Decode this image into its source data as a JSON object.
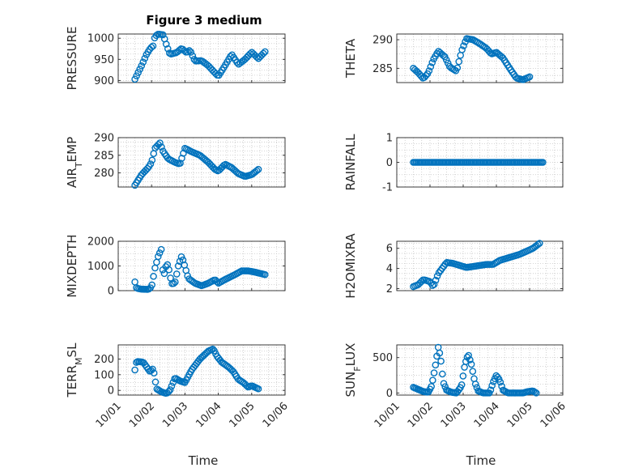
{
  "figure": {
    "title": "Figure 3 medium",
    "xlabel": "Time",
    "colors": {
      "marker": "#0072BD",
      "axis": "#262626",
      "grid": "#c8c8c8"
    },
    "xticks": [
      "10/01",
      "10/02",
      "10/03",
      "10/04",
      "10/05",
      "10/06"
    ]
  },
  "chart_data": [
    {
      "type": "scatter",
      "title": "Figure 3 medium",
      "ylabel": "PRESSURE",
      "ylabel_parts": [
        {
          "t": "PRESSURE"
        }
      ],
      "xlim": [
        0,
        5
      ],
      "ylim": [
        895,
        1010
      ],
      "yticks": [
        900,
        950,
        1000
      ],
      "xticks_visible": false,
      "knots": [
        [
          0.5,
          903
        ],
        [
          0.7,
          935
        ],
        [
          0.85,
          962
        ],
        [
          0.97,
          977
        ],
        [
          1.05,
          982
        ],
        [
          1.1,
          1004
        ],
        [
          1.2,
          1010
        ],
        [
          1.35,
          1008
        ],
        [
          1.45,
          983
        ],
        [
          1.55,
          962
        ],
        [
          1.75,
          966
        ],
        [
          1.9,
          976
        ],
        [
          2.05,
          966
        ],
        [
          2.15,
          972
        ],
        [
          2.3,
          946
        ],
        [
          2.5,
          947
        ],
        [
          2.7,
          935
        ],
        [
          2.9,
          918
        ],
        [
          3.0,
          910
        ],
        [
          3.2,
          935
        ],
        [
          3.4,
          962
        ],
        [
          3.6,
          938
        ],
        [
          3.8,
          950
        ],
        [
          4.0,
          967
        ],
        [
          4.2,
          952
        ],
        [
          4.4,
          968
        ]
      ],
      "points": 80,
      "ybreak": []
    },
    {
      "type": "scatter",
      "title": "",
      "ylabel": "THETA",
      "ylabel_parts": [
        {
          "t": "THETA"
        }
      ],
      "xlim": [
        0,
        5
      ],
      "ylim": [
        282.5,
        291
      ],
      "yticks": [
        285,
        290
      ],
      "xticks_visible": false,
      "knots": [
        [
          0.5,
          285
        ],
        [
          0.65,
          284.2
        ],
        [
          0.8,
          283.2
        ],
        [
          0.95,
          284.2
        ],
        [
          1.1,
          286.5
        ],
        [
          1.25,
          288
        ],
        [
          1.45,
          287
        ],
        [
          1.6,
          285.2
        ],
        [
          1.8,
          284.5
        ],
        [
          1.95,
          288
        ],
        [
          2.1,
          290.2
        ],
        [
          2.3,
          290
        ],
        [
          2.5,
          289.3
        ],
        [
          2.7,
          288.5
        ],
        [
          2.85,
          287.5
        ],
        [
          3.0,
          287.8
        ],
        [
          3.2,
          286.8
        ],
        [
          3.4,
          285
        ],
        [
          3.6,
          283.3
        ],
        [
          3.8,
          283
        ],
        [
          4.0,
          283.5
        ]
      ],
      "points": 75,
      "ybreak": []
    },
    {
      "type": "scatter",
      "title": "",
      "ylabel": "AIR_TEMP",
      "ylabel_parts": [
        {
          "t": "AIR"
        },
        {
          "t": "T",
          "sub": true
        },
        {
          "t": "EMP"
        }
      ],
      "xlim": [
        0,
        5
      ],
      "ylim": [
        276,
        290
      ],
      "yticks": [
        280,
        285,
        290
      ],
      "xticks_visible": false,
      "knots": [
        [
          0.5,
          276.5
        ],
        [
          0.7,
          279.5
        ],
        [
          0.9,
          281.5
        ],
        [
          1.0,
          283
        ],
        [
          1.1,
          287
        ],
        [
          1.25,
          288.5
        ],
        [
          1.35,
          286
        ],
        [
          1.5,
          284
        ],
        [
          1.7,
          283
        ],
        [
          1.85,
          282.5
        ],
        [
          2.0,
          287
        ],
        [
          2.2,
          286
        ],
        [
          2.45,
          285
        ],
        [
          2.7,
          283
        ],
        [
          2.9,
          281
        ],
        [
          3.0,
          280.5
        ],
        [
          3.2,
          282.5
        ],
        [
          3.4,
          281.5
        ],
        [
          3.6,
          279.8
        ],
        [
          3.8,
          279
        ],
        [
          4.0,
          279.5
        ],
        [
          4.2,
          281
        ]
      ],
      "points": 80,
      "ybreak": []
    },
    {
      "type": "scatter",
      "title": "",
      "ylabel": "RAINFALL",
      "ylabel_parts": [
        {
          "t": "RAINFALL"
        }
      ],
      "xlim": [
        0,
        5
      ],
      "ylim": [
        -1,
        1
      ],
      "yticks": [
        -1,
        0,
        1
      ],
      "xticks_visible": false,
      "knots": [
        [
          0.5,
          0
        ],
        [
          4.4,
          0
        ]
      ],
      "points": 95,
      "ybreak": []
    },
    {
      "type": "scatter",
      "title": "",
      "ylabel": "MIXDEPTH",
      "ylabel_parts": [
        {
          "t": "MIXDEPTH"
        }
      ],
      "xlim": [
        0,
        5
      ],
      "ylim": [
        0,
        2000
      ],
      "yticks": [
        0,
        1000,
        2000
      ],
      "xticks_visible": false,
      "knots": [
        [
          0.5,
          350
        ],
        [
          0.55,
          100
        ],
        [
          0.7,
          60
        ],
        [
          0.9,
          50
        ],
        [
          1.0,
          150
        ],
        [
          1.1,
          900
        ],
        [
          1.2,
          1400
        ],
        [
          1.3,
          1700
        ],
        [
          1.35,
          500
        ],
        [
          1.45,
          1100
        ],
        [
          1.5,
          1000
        ],
        [
          1.6,
          280
        ],
        [
          1.7,
          300
        ],
        [
          1.8,
          1000
        ],
        [
          1.9,
          1400
        ],
        [
          1.95,
          1200
        ],
        [
          2.1,
          500
        ],
        [
          2.3,
          300
        ],
        [
          2.5,
          200
        ],
        [
          2.7,
          300
        ],
        [
          2.9,
          450
        ],
        [
          3.0,
          300
        ],
        [
          3.2,
          450
        ],
        [
          3.5,
          650
        ],
        [
          3.7,
          800
        ],
        [
          3.9,
          800
        ],
        [
          4.1,
          750
        ],
        [
          4.4,
          650
        ]
      ],
      "points": 85,
      "ybreak": []
    },
    {
      "type": "scatter",
      "title": "",
      "ylabel": "H2OMIXRA",
      "ylabel_parts": [
        {
          "t": "H2OMIXRA"
        }
      ],
      "xlim": [
        0,
        5
      ],
      "ylim": [
        1.8,
        6.7
      ],
      "yticks": [
        2,
        4,
        6
      ],
      "xticks_visible": false,
      "knots": [
        [
          0.5,
          2.2
        ],
        [
          0.65,
          2.4
        ],
        [
          0.8,
          2.9
        ],
        [
          1.0,
          2.7
        ],
        [
          1.1,
          2.2
        ],
        [
          1.25,
          3.5
        ],
        [
          1.5,
          4.6
        ],
        [
          1.7,
          4.5
        ],
        [
          1.9,
          4.3
        ],
        [
          2.1,
          4.1
        ],
        [
          2.3,
          4.2
        ],
        [
          2.5,
          4.3
        ],
        [
          2.7,
          4.4
        ],
        [
          2.9,
          4.4
        ],
        [
          3.1,
          4.8
        ],
        [
          3.3,
          5.0
        ],
        [
          3.5,
          5.2
        ],
        [
          3.7,
          5.4
        ],
        [
          3.9,
          5.7
        ],
        [
          4.1,
          6.0
        ],
        [
          4.3,
          6.5
        ]
      ],
      "points": 80,
      "ybreak": []
    },
    {
      "type": "scatter",
      "title": "",
      "ylabel": "TERR_MSL",
      "ylabel_parts": [
        {
          "t": "TERR"
        },
        {
          "t": "M",
          "sub": true
        },
        {
          "t": "SL"
        }
      ],
      "xlim": [
        0,
        5
      ],
      "ylim": [
        -30,
        290
      ],
      "yticks": [
        0,
        100,
        200
      ],
      "xticks_visible": true,
      "knots": [
        [
          0.5,
          130
        ],
        [
          0.55,
          185
        ],
        [
          0.75,
          180
        ],
        [
          0.95,
          120
        ],
        [
          1.05,
          140
        ],
        [
          1.15,
          10
        ],
        [
          1.3,
          -10
        ],
        [
          1.45,
          -20
        ],
        [
          1.55,
          0
        ],
        [
          1.7,
          80
        ],
        [
          1.85,
          60
        ],
        [
          2.0,
          50
        ],
        [
          2.2,
          130
        ],
        [
          2.45,
          200
        ],
        [
          2.7,
          250
        ],
        [
          2.85,
          265
        ],
        [
          2.95,
          220
        ],
        [
          3.1,
          180
        ],
        [
          3.3,
          150
        ],
        [
          3.45,
          120
        ],
        [
          3.6,
          70
        ],
        [
          3.75,
          50
        ],
        [
          3.9,
          20
        ],
        [
          4.0,
          30
        ],
        [
          4.2,
          10
        ]
      ],
      "points": 85,
      "ybreak": []
    },
    {
      "type": "scatter",
      "title": "",
      "ylabel": "SUN_FLUX",
      "ylabel_parts": [
        {
          "t": "SUN"
        },
        {
          "t": "F",
          "sub": true
        },
        {
          "t": "LUX"
        }
      ],
      "xlim": [
        0,
        5
      ],
      "ylim": [
        -30,
        680
      ],
      "yticks": [
        0,
        500
      ],
      "xticks_visible": true,
      "knots": [
        [
          0.5,
          80
        ],
        [
          0.6,
          60
        ],
        [
          0.8,
          20
        ],
        [
          0.95,
          10
        ],
        [
          1.05,
          100
        ],
        [
          1.15,
          350
        ],
        [
          1.25,
          650
        ],
        [
          1.32,
          500
        ],
        [
          1.4,
          150
        ],
        [
          1.5,
          40
        ],
        [
          1.65,
          10
        ],
        [
          1.8,
          0
        ],
        [
          1.95,
          100
        ],
        [
          2.05,
          400
        ],
        [
          2.15,
          550
        ],
        [
          2.25,
          400
        ],
        [
          2.35,
          150
        ],
        [
          2.45,
          30
        ],
        [
          2.6,
          0
        ],
        [
          2.8,
          0
        ],
        [
          2.9,
          150
        ],
        [
          3.0,
          250
        ],
        [
          3.1,
          180
        ],
        [
          3.2,
          40
        ],
        [
          3.35,
          0
        ],
        [
          3.6,
          0
        ],
        [
          3.8,
          0
        ],
        [
          3.95,
          20
        ],
        [
          4.1,
          30
        ],
        [
          4.2,
          0
        ]
      ],
      "points": 90,
      "ybreak": []
    }
  ]
}
